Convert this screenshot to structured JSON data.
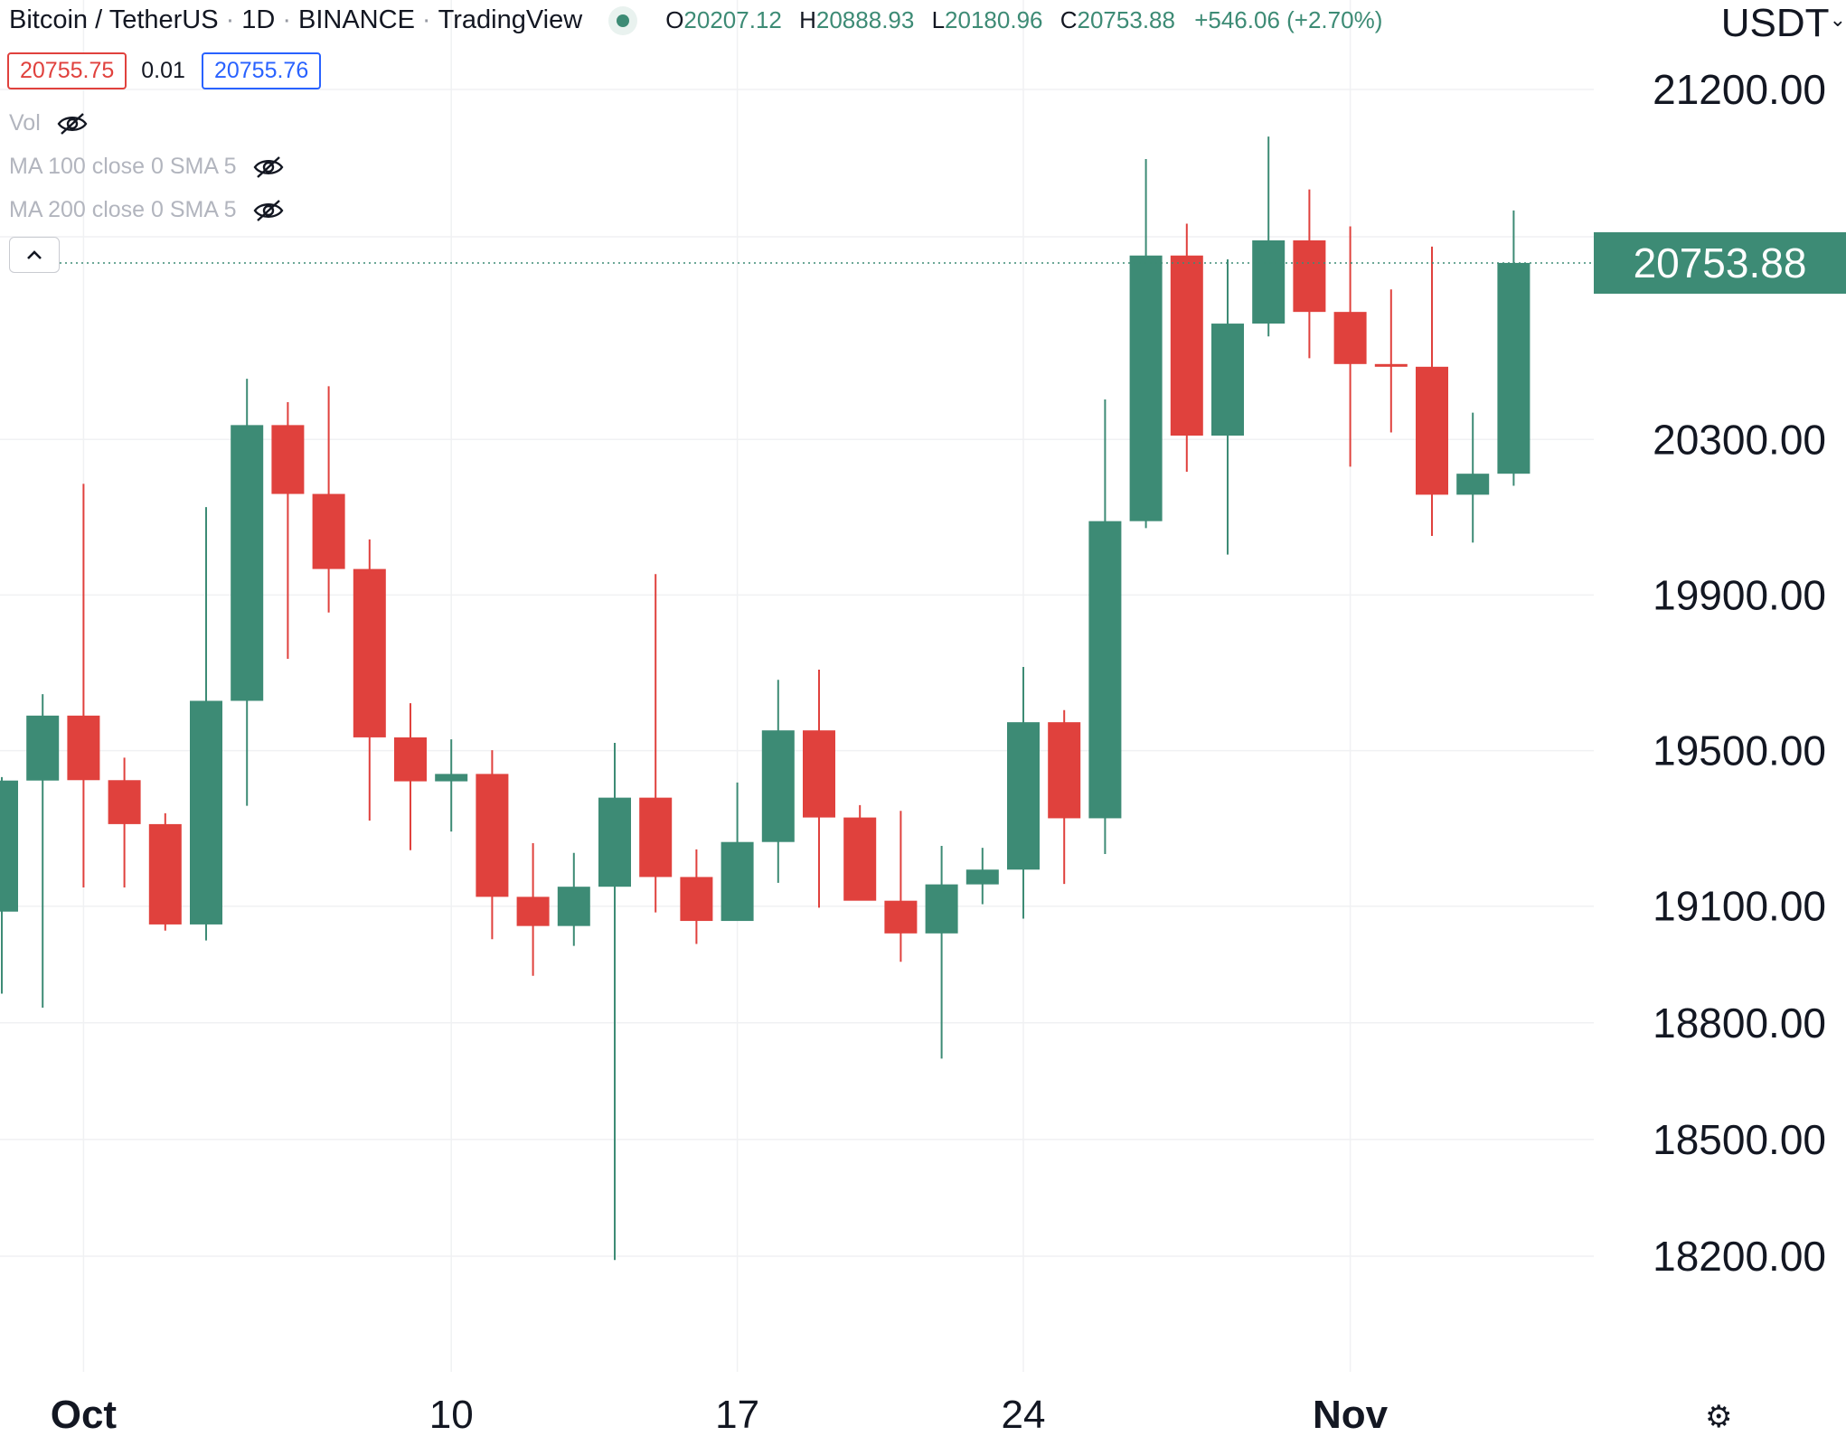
{
  "header": {
    "symbol": "Bitcoin / TetherUS",
    "interval": "1D",
    "exchange": "BINANCE",
    "source": "TradingView",
    "ohlc": {
      "o_label": "O",
      "o": "20207.12",
      "h_label": "H",
      "h": "20888.93",
      "l_label": "L",
      "l": "20180.96",
      "c_label": "C",
      "c": "20753.88",
      "change": "+546.06 (+2.70%)"
    },
    "currency": "USDT"
  },
  "prices": {
    "sell": "20755.75",
    "spread": "0.01",
    "buy": "20755.76"
  },
  "indicators": [
    {
      "label": "Vol"
    },
    {
      "label": "MA 100 close 0 SMA 5"
    },
    {
      "label": "MA 200 close 0 SMA 5"
    }
  ],
  "last_price_label": "20753.88",
  "colors": {
    "up": "#3d8b75",
    "down": "#e0413d",
    "grid": "#f0f1f3",
    "text": "#131722"
  },
  "icons": [
    "eye-off-icon",
    "chevron-up-icon",
    "gear-icon",
    "status-dot-icon"
  ],
  "chart_data": {
    "type": "candlestick",
    "title": "",
    "xlabel": "",
    "ylabel": "",
    "ylim": [
      17900,
      21450
    ],
    "y_ticks": [
      {
        "value": 21200,
        "label": "21200.00"
      },
      {
        "value": 20300,
        "label": "20300.00"
      },
      {
        "value": 19900,
        "label": "19900.00"
      },
      {
        "value": 19500,
        "label": "19500.00"
      },
      {
        "value": 19100,
        "label": "19100.00"
      },
      {
        "value": 18800,
        "label": "18800.00"
      },
      {
        "value": 18500,
        "label": "18500.00"
      },
      {
        "value": 18200,
        "label": "18200.00"
      }
    ],
    "x_ticks": [
      {
        "index": 2,
        "label": "Oct",
        "bold": true
      },
      {
        "index": 11,
        "label": "10",
        "bold": false
      },
      {
        "index": 18,
        "label": "17",
        "bold": false
      },
      {
        "index": 25,
        "label": "24",
        "bold": false
      },
      {
        "index": 33,
        "label": "Nov",
        "bold": true
      }
    ],
    "last_price": 20753.88,
    "candles": [
      {
        "o": 19086,
        "h": 19432,
        "l": 18875,
        "c": 19423
      },
      {
        "o": 19423,
        "h": 19645,
        "l": 18839,
        "c": 19590
      },
      {
        "o": 19590,
        "h": 20186,
        "l": 19148,
        "c": 19424
      },
      {
        "o": 19424,
        "h": 19482,
        "l": 19148,
        "c": 19311
      },
      {
        "o": 19311,
        "h": 19339,
        "l": 19037,
        "c": 19053
      },
      {
        "o": 19053,
        "h": 20126,
        "l": 19012,
        "c": 19628
      },
      {
        "o": 19628,
        "h": 20456,
        "l": 19358,
        "c": 20337
      },
      {
        "o": 20337,
        "h": 20396,
        "l": 19736,
        "c": 20160
      },
      {
        "o": 20160,
        "h": 20437,
        "l": 19855,
        "c": 19967
      },
      {
        "o": 19967,
        "h": 20043,
        "l": 19320,
        "c": 19534
      },
      {
        "o": 19534,
        "h": 19622,
        "l": 19244,
        "c": 19421
      },
      {
        "o": 19421,
        "h": 19529,
        "l": 19292,
        "c": 19440
      },
      {
        "o": 19440,
        "h": 19501,
        "l": 19015,
        "c": 19124
      },
      {
        "o": 19124,
        "h": 19262,
        "l": 18921,
        "c": 19049
      },
      {
        "o": 19049,
        "h": 19237,
        "l": 18998,
        "c": 19150
      },
      {
        "o": 19150,
        "h": 19520,
        "l": 18190,
        "c": 19379
      },
      {
        "o": 19379,
        "h": 19954,
        "l": 19084,
        "c": 19175
      },
      {
        "o": 19175,
        "h": 19246,
        "l": 19003,
        "c": 19062
      },
      {
        "o": 19062,
        "h": 19418,
        "l": 19065,
        "c": 19265
      },
      {
        "o": 19265,
        "h": 19682,
        "l": 19160,
        "c": 19552
      },
      {
        "o": 19552,
        "h": 19708,
        "l": 19096,
        "c": 19328
      },
      {
        "o": 19328,
        "h": 19360,
        "l": 19115,
        "c": 19114
      },
      {
        "o": 19114,
        "h": 19345,
        "l": 18957,
        "c": 19030
      },
      {
        "o": 19030,
        "h": 19255,
        "l": 18708,
        "c": 19156
      },
      {
        "o": 19156,
        "h": 19250,
        "l": 19105,
        "c": 19194
      },
      {
        "o": 19194,
        "h": 19715,
        "l": 19068,
        "c": 19573
      },
      {
        "o": 19573,
        "h": 19604,
        "l": 19157,
        "c": 19326
      },
      {
        "o": 19326,
        "h": 20403,
        "l": 19234,
        "c": 20090
      },
      {
        "o": 20090,
        "h": 21021,
        "l": 20072,
        "c": 20773
      },
      {
        "o": 20773,
        "h": 20855,
        "l": 20217,
        "c": 20310
      },
      {
        "o": 20310,
        "h": 20763,
        "l": 20004,
        "c": 20598
      },
      {
        "o": 20598,
        "h": 21079,
        "l": 20565,
        "c": 20812
      },
      {
        "o": 20812,
        "h": 20943,
        "l": 20509,
        "c": 20628
      },
      {
        "o": 20628,
        "h": 20848,
        "l": 20230,
        "c": 20494
      },
      {
        "o": 20494,
        "h": 20686,
        "l": 20318,
        "c": 20487
      },
      {
        "o": 20487,
        "h": 20796,
        "l": 20052,
        "c": 20158
      },
      {
        "o": 20158,
        "h": 20369,
        "l": 20035,
        "c": 20212
      },
      {
        "o": 20212,
        "h": 20889,
        "l": 20181,
        "c": 20754
      }
    ]
  }
}
